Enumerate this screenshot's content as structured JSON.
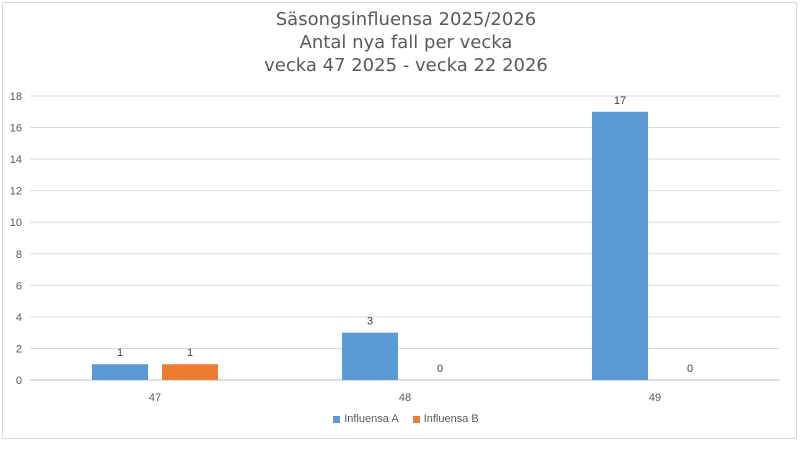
{
  "chart_data": {
    "type": "bar",
    "title": [
      "Säsongsinfluensa 2025/2026",
      "Antal nya fall per vecka",
      "vecka 47 2025 - vecka 22 2026"
    ],
    "categories": [
      "47",
      "48",
      "49"
    ],
    "series": [
      {
        "name": "Influensa A",
        "values": [
          1,
          3,
          17
        ],
        "color": "#5b9bd5"
      },
      {
        "name": "Influensa B",
        "values": [
          1,
          0,
          0
        ],
        "color": "#ed7d31"
      }
    ],
    "ylim": [
      0,
      18
    ],
    "yticks": [
      0,
      2,
      4,
      6,
      8,
      10,
      12,
      14,
      16,
      18
    ],
    "grid": true,
    "legend_position": "bottom",
    "data_labels": true
  }
}
